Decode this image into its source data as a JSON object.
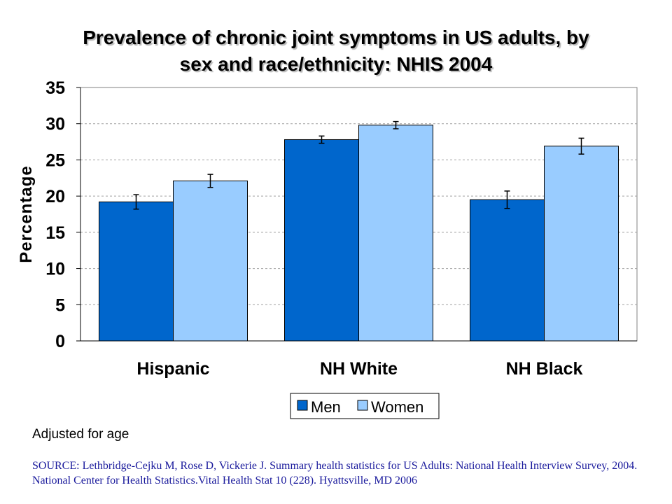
{
  "chart_data": {
    "type": "bar",
    "title": [
      "Prevalence of chronic joint symptoms in US adults, by",
      "sex and race/ethnicity: NHIS 2004"
    ],
    "xlabel": "",
    "ylabel": "Percentage",
    "ylim": [
      0,
      35
    ],
    "yticks": [
      "0",
      "5",
      "10",
      "15",
      "20",
      "25",
      "30",
      "35"
    ],
    "categories": [
      "Hispanic",
      "NH White",
      "NH Black"
    ],
    "series": [
      {
        "name": "Men",
        "color": "#0066cc",
        "values": [
          19.2,
          27.8,
          19.5
        ],
        "error": [
          1.0,
          0.5,
          1.2
        ]
      },
      {
        "name": "Women",
        "color": "#99ccff",
        "values": [
          22.1,
          29.8,
          26.9
        ],
        "error": [
          0.9,
          0.5,
          1.1
        ]
      }
    ],
    "grid": true,
    "legend": "bottom-center"
  },
  "note": "Adjusted for age",
  "source": "SOURCE: Lethbridge-Cejku M, Rose D, Vickerie J. Summary health statistics for US Adults:  National Health Interview Survey, 2004. National Center for Health Statistics.Vital Health Stat 10 (228). Hyattsville, MD 2006"
}
